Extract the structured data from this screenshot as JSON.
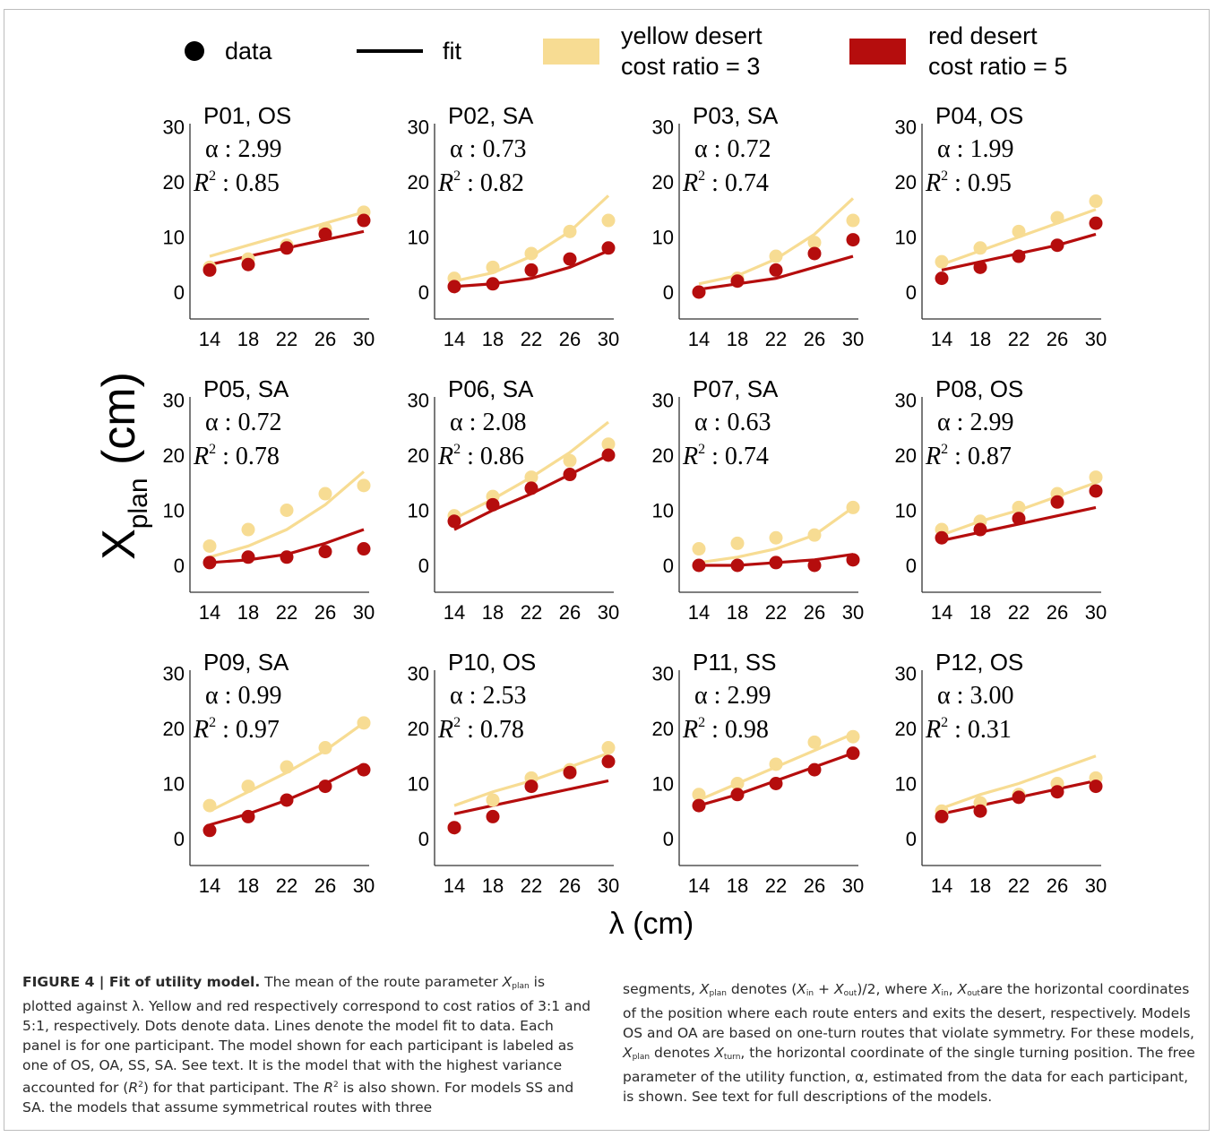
{
  "legend": {
    "data_label": "data",
    "fit_label": "fit",
    "yellow_label_1": "yellow desert",
    "yellow_label_2": "cost ratio = 3",
    "red_label_1": "red desert",
    "red_label_2": "cost ratio = 5"
  },
  "axes": {
    "xlabel_symbol": "λ",
    "xlabel_unit": " (cm)",
    "ylabel_main": "X",
    "ylabel_sub": "plan",
    "ylabel_unit": " (cm)"
  },
  "colors": {
    "yellow": "#f7dc93",
    "red": "#b50d0d",
    "axis": "#333333",
    "legend_dot": "#000000"
  },
  "chart_data": {
    "type": "scatter",
    "x": [
      14,
      18,
      22,
      26,
      30
    ],
    "xticks": [
      "14",
      "18",
      "22",
      "26",
      "30"
    ],
    "yticks": [
      "0",
      "10",
      "20",
      "30"
    ],
    "ylim": [
      -5,
      30
    ],
    "xlim": [
      12,
      32
    ],
    "panels": [
      {
        "title": "P01, OS",
        "alpha": "α : 2.99",
        "r2": "0.85",
        "yellow_data": [
          4.5,
          6.0,
          8.5,
          11.5,
          14.5
        ],
        "red_data": [
          4.0,
          5.0,
          8.0,
          10.5,
          13.0
        ],
        "yellow_fit": [
          6.5,
          8.5,
          10.5,
          12.5,
          14.5
        ],
        "red_fit": [
          5.0,
          6.5,
          8.0,
          9.5,
          11.0
        ]
      },
      {
        "title": "P02, SA",
        "alpha": "α : 0.73",
        "r2": "0.82",
        "yellow_data": [
          2.5,
          4.5,
          7.0,
          11.0,
          13.0
        ],
        "red_data": [
          1.0,
          1.5,
          4.0,
          6.0,
          8.0
        ],
        "yellow_fit": [
          2.0,
          3.5,
          6.5,
          11.0,
          17.5
        ],
        "red_fit": [
          1.0,
          1.5,
          2.5,
          4.5,
          7.5
        ]
      },
      {
        "title": "P03, SA",
        "alpha": "α : 0.72",
        "r2": "0.74",
        "yellow_data": [
          0.0,
          2.5,
          6.5,
          9.0,
          13.0
        ],
        "red_data": [
          0.0,
          2.0,
          4.0,
          7.0,
          9.5
        ],
        "yellow_fit": [
          1.5,
          3.0,
          6.0,
          10.5,
          17.0
        ],
        "red_fit": [
          0.5,
          1.5,
          2.5,
          4.5,
          6.5
        ]
      },
      {
        "title": "P04, OS",
        "alpha": "α : 1.99",
        "r2": "0.95",
        "yellow_data": [
          5.5,
          8.0,
          11.0,
          13.5,
          16.5
        ],
        "red_data": [
          2.5,
          4.5,
          6.5,
          8.5,
          12.5
        ],
        "yellow_fit": [
          5.0,
          7.5,
          10.0,
          12.5,
          15.0
        ],
        "red_fit": [
          4.0,
          5.5,
          7.0,
          8.5,
          10.5
        ]
      },
      {
        "title": "P05, SA",
        "alpha": "α : 0.72",
        "r2": "0.78",
        "yellow_data": [
          3.5,
          6.5,
          10.0,
          13.0,
          14.5
        ],
        "red_data": [
          0.5,
          1.5,
          1.5,
          2.5,
          3.0
        ],
        "yellow_fit": [
          1.5,
          3.5,
          6.5,
          11.0,
          17.0
        ],
        "red_fit": [
          0.5,
          1.0,
          2.0,
          4.0,
          6.5
        ]
      },
      {
        "title": "P06, SA",
        "alpha": "α : 2.08",
        "r2": "0.86",
        "yellow_data": [
          9.0,
          12.5,
          16.0,
          19.0,
          22.0
        ],
        "red_data": [
          8.0,
          11.0,
          14.0,
          16.5,
          20.0
        ],
        "yellow_fit": [
          8.5,
          12.0,
          16.0,
          20.5,
          26.0
        ],
        "red_fit": [
          6.5,
          10.0,
          13.0,
          16.5,
          20.0
        ]
      },
      {
        "title": "P07, SA",
        "alpha": "α : 0.63",
        "r2": "0.74",
        "yellow_data": [
          3.0,
          4.0,
          5.0,
          5.5,
          10.5
        ],
        "red_data": [
          0.0,
          0.0,
          0.5,
          0.0,
          1.0
        ],
        "yellow_fit": [
          0.5,
          1.5,
          3.0,
          5.5,
          10.5
        ],
        "red_fit": [
          0.0,
          0.0,
          0.5,
          1.0,
          2.0
        ]
      },
      {
        "title": "P08, OS",
        "alpha": "α : 2.99",
        "r2": "0.87",
        "yellow_data": [
          6.5,
          8.0,
          10.5,
          13.0,
          16.0
        ],
        "red_data": [
          5.0,
          6.5,
          8.5,
          11.5,
          13.5
        ],
        "yellow_fit": [
          5.5,
          8.0,
          10.0,
          12.5,
          15.0
        ],
        "red_fit": [
          4.5,
          6.0,
          7.5,
          9.0,
          10.5
        ]
      },
      {
        "title": "P09, SA",
        "alpha": "α : 0.99",
        "r2": "0.97",
        "yellow_data": [
          6.0,
          9.5,
          13.0,
          16.5,
          21.0
        ],
        "red_data": [
          1.5,
          4.0,
          7.0,
          9.5,
          12.5
        ],
        "yellow_fit": [
          5.0,
          8.5,
          12.0,
          16.0,
          21.0
        ],
        "red_fit": [
          2.5,
          4.5,
          7.0,
          10.0,
          13.5
        ]
      },
      {
        "title": "P10, OS",
        "alpha": "α : 2.53",
        "r2": "0.78",
        "yellow_data": [
          2.0,
          7.0,
          11.0,
          12.5,
          16.5
        ],
        "red_data": [
          2.0,
          4.0,
          9.5,
          12.0,
          14.0
        ],
        "yellow_fit": [
          6.0,
          8.5,
          10.5,
          13.0,
          15.5
        ],
        "red_fit": [
          4.5,
          6.0,
          7.5,
          9.0,
          10.5
        ]
      },
      {
        "title": "P11, SS",
        "alpha": "α : 2.99",
        "r2": "0.98",
        "yellow_data": [
          8.0,
          10.0,
          13.5,
          17.5,
          18.5
        ],
        "red_data": [
          6.0,
          8.0,
          10.0,
          12.5,
          15.5
        ],
        "yellow_fit": [
          7.0,
          10.0,
          13.0,
          16.0,
          19.0
        ],
        "red_fit": [
          6.0,
          8.0,
          10.5,
          13.0,
          15.5
        ]
      },
      {
        "title": "P12, OS",
        "alpha": "α : 3.00",
        "r2": "0.31",
        "yellow_data": [
          5.0,
          6.5,
          8.0,
          10.0,
          11.0
        ],
        "red_data": [
          4.0,
          5.0,
          7.5,
          8.5,
          9.5
        ],
        "yellow_fit": [
          5.5,
          8.0,
          10.0,
          12.5,
          15.0
        ],
        "red_fit": [
          4.5,
          6.0,
          7.5,
          9.0,
          10.5
        ]
      }
    ]
  },
  "caption": {
    "label": "FIGURE 4 | Fit of utility model.",
    "left_1": " The mean of the route parameter ",
    "left_2": " is plotted against λ. Yellow and red respectively correspond to cost ratios of 3:1 and 5:1, respectively. Dots denote data. Lines denote the model fit to data. Each panel is for one participant. The model shown for each participant is labeled as one of OS, OA, SS, SA. See text. It is the model that with the highest variance accounted for (",
    "left_3": ") for that participant. The ",
    "left_4": " is also shown. For models SS and SA. the models that assume symmetrical routes with three",
    "right_1": "segments, ",
    "right_2": " denotes (",
    "right_3": ")/2, where ",
    "right_4": "are the horizontal coordinates of the position where each route enters and exits the desert, respectively. Models OS and OA are based on one-turn routes that violate symmetry. For these models, ",
    "right_5": " denotes ",
    "right_6": ", the horizontal coordinate of the single turning position. The free parameter of the utility function, α, estimated from the data for each participant, is shown. See text for full descriptions of the models.",
    "sym_X": "X",
    "sub_plan": "plan",
    "sub_in": "in",
    "sub_out": "out",
    "sub_turn": "turn",
    "sym_R": "R",
    "sup_2": "2",
    "plus": " + ",
    "comma": ", "
  }
}
